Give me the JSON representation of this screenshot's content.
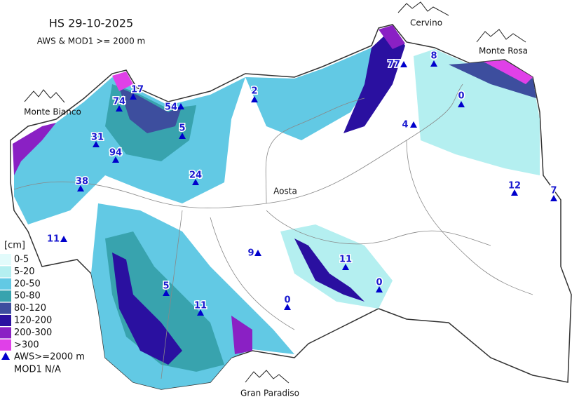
{
  "header": {
    "title": "HS 29-10-2025",
    "subtitle": "AWS & MOD1 >= 2000 m"
  },
  "places": [
    "Monte Bianco",
    "Cervino",
    "Monte Rosa",
    "Gran Paradiso",
    "Aosta"
  ],
  "legend": {
    "unit": "[cm]",
    "classes": [
      {
        "label": "0-5",
        "color": "#e2fbfb"
      },
      {
        "label": "5-20",
        "color": "#b4eff0"
      },
      {
        "label": "20-50",
        "color": "#62c9e4"
      },
      {
        "label": "50-80",
        "color": "#38a3ae"
      },
      {
        "label": "80-120",
        "color": "#3d4e9e"
      },
      {
        "label": "120-200",
        "color": "#2a10a0"
      },
      {
        "label": "200-300",
        "color": "#8a20c4"
      },
      {
        "label": ">300",
        "color": "#e040e8"
      }
    ],
    "station": "AWS>=2000 m",
    "station_color": "#0000cc",
    "model": "MOD1 N/A"
  },
  "stations": [
    17,
    74,
    54,
    2,
    77,
    8,
    0,
    31,
    5,
    94,
    24,
    38,
    4,
    12,
    7,
    11,
    9,
    11,
    0,
    5,
    11,
    0
  ]
}
